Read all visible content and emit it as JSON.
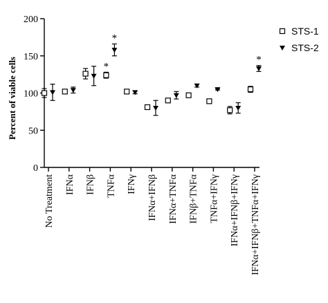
{
  "chart_data": {
    "type": "scatter",
    "ylabel": "Percent of viable cells",
    "xlabel": "",
    "ylim": [
      0,
      200
    ],
    "yticks": [
      0,
      50,
      100,
      150,
      200
    ],
    "categories": [
      "No Treatment",
      "IFNα",
      "IFNβ",
      "TNFα",
      "IFNγ",
      "IFNα+IFNβ",
      "IFNα+TNFα",
      "IFNβ+TNFα",
      "TNFα+IFNγ",
      "IFNα+IFNβ+IFNγ",
      "IFNα+IFNβ+TNFα+IFNγ"
    ],
    "series": [
      {
        "name": "STS-1",
        "marker": "open-square",
        "values": [
          100,
          102,
          126,
          124,
          102,
          81,
          90,
          97,
          89,
          77,
          105
        ],
        "errors": [
          6,
          2,
          7,
          4,
          3,
          2,
          2,
          3,
          3,
          5,
          4
        ]
      },
      {
        "name": "STS-2",
        "marker": "filled-triangle-down",
        "values": [
          101,
          104,
          123,
          158,
          101,
          80,
          97,
          110,
          105,
          80,
          133
        ],
        "errors": [
          11,
          4,
          13,
          8,
          2,
          10,
          5,
          2,
          1,
          7,
          4
        ]
      }
    ],
    "annotations": [
      {
        "text": "*",
        "category": "TNFα",
        "series": "STS-1"
      },
      {
        "text": "*",
        "category": "TNFα",
        "series": "STS-2"
      },
      {
        "text": "*",
        "category": "IFNα+IFNβ+TNFα+IFNγ",
        "series": "STS-2"
      }
    ],
    "legend": {
      "placement": "top-right"
    },
    "grid": false
  }
}
